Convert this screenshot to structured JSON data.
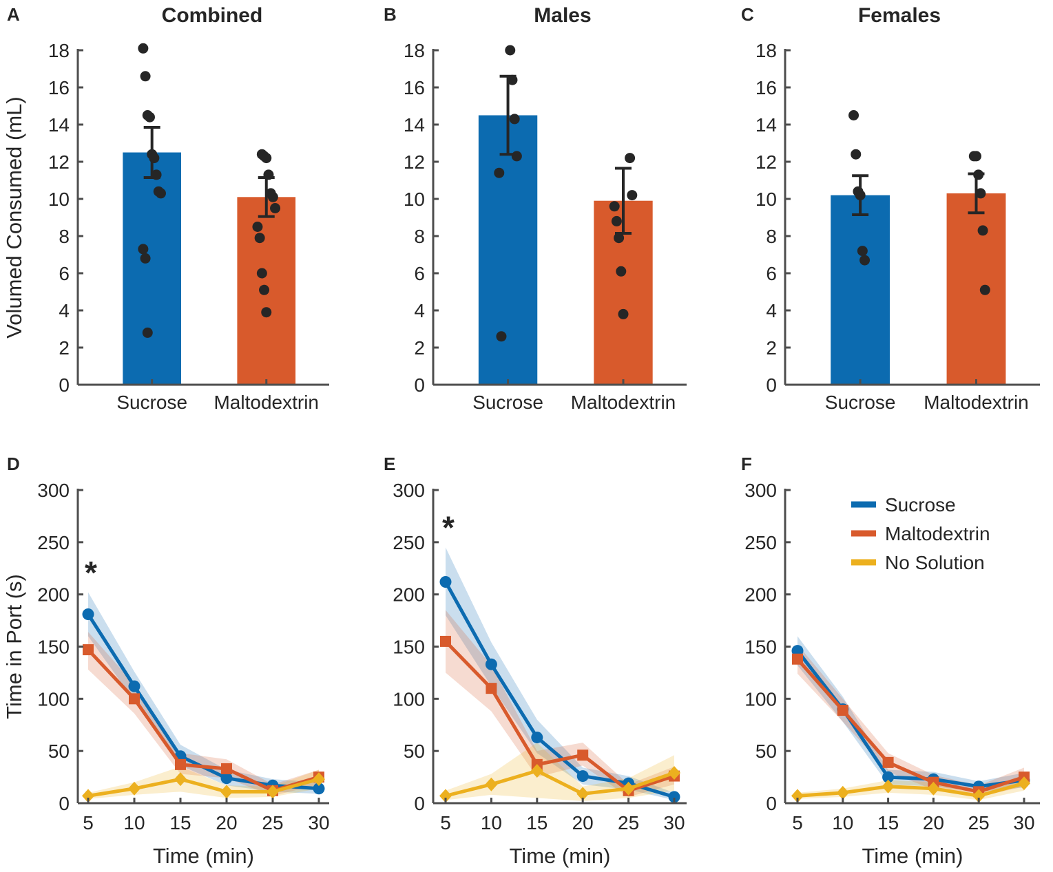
{
  "chart_data": [
    {
      "type": "bar",
      "panel_label": "A",
      "title": "Combined",
      "ylabel": "Volumed Consumed (mL)",
      "xlabel": "",
      "ylim": [
        0,
        18
      ],
      "yticks": [
        0,
        2,
        4,
        6,
        8,
        10,
        12,
        14,
        16,
        18
      ],
      "categories": [
        "Sucrose",
        "Maltodextrin"
      ],
      "values": [
        12.5,
        10.1
      ],
      "errors": [
        1.35,
        1.05
      ],
      "colors": [
        "#0c6bb0",
        "#d85a2c"
      ],
      "points": [
        [
          18.1,
          16.6,
          14.5,
          14.4,
          12.4,
          12.2,
          11.3,
          10.4,
          10.3,
          7.3,
          6.8,
          2.8
        ],
        [
          12.4,
          12.3,
          12.2,
          11.3,
          10.3,
          10.1,
          9.5,
          8.5,
          7.9,
          6.0,
          5.1,
          3.9
        ]
      ]
    },
    {
      "type": "bar",
      "panel_label": "B",
      "title": "Males",
      "ylabel": "",
      "xlabel": "",
      "ylim": [
        0,
        18
      ],
      "yticks": [
        0,
        2,
        4,
        6,
        8,
        10,
        12,
        14,
        16,
        18
      ],
      "categories": [
        "Sucrose",
        "Maltodextrin"
      ],
      "values": [
        14.5,
        9.9
      ],
      "errors": [
        2.1,
        1.75
      ],
      "colors": [
        "#0c6bb0",
        "#d85a2c"
      ],
      "points": [
        [
          18.0,
          16.4,
          14.3,
          12.3,
          11.4,
          2.6
        ],
        [
          12.2,
          10.2,
          9.6,
          8.8,
          7.9,
          6.1,
          3.8
        ]
      ]
    },
    {
      "type": "bar",
      "panel_label": "C",
      "title": "Females",
      "ylabel": "",
      "xlabel": "",
      "ylim": [
        0,
        18
      ],
      "yticks": [
        0,
        2,
        4,
        6,
        8,
        10,
        12,
        14,
        16,
        18
      ],
      "categories": [
        "Sucrose",
        "Maltodextrin"
      ],
      "values": [
        10.2,
        10.3
      ],
      "errors": [
        1.05,
        1.05
      ],
      "colors": [
        "#0c6bb0",
        "#d85a2c"
      ],
      "points": [
        [
          14.5,
          12.4,
          10.4,
          10.2,
          7.2,
          6.7
        ],
        [
          12.3,
          12.3,
          11.3,
          10.3,
          8.3,
          5.1
        ]
      ]
    },
    {
      "type": "line",
      "panel_label": "D",
      "title": "",
      "ylabel": "Time in Port (s)",
      "xlabel": "Time (min)",
      "x": [
        5,
        10,
        15,
        20,
        25,
        30
      ],
      "xlim": [
        5,
        30
      ],
      "ylim": [
        0,
        300
      ],
      "yticks": [
        0,
        50,
        100,
        150,
        200,
        250,
        300
      ],
      "annotation": "*",
      "annotation_x": 5,
      "annotation_y": 225,
      "series": [
        {
          "name": "Sucrose",
          "color": "#0c6bb0",
          "marker": "circle",
          "values": [
            181,
            112,
            45,
            24,
            17,
            14
          ],
          "lower": [
            160,
            98,
            36,
            17,
            11,
            9
          ],
          "upper": [
            202,
            126,
            56,
            32,
            23,
            20
          ]
        },
        {
          "name": "Maltodextrin",
          "color": "#d85a2c",
          "marker": "square",
          "values": [
            147,
            100,
            37,
            33,
            12,
            25
          ],
          "lower": [
            128,
            86,
            28,
            24,
            7,
            18
          ],
          "upper": [
            164,
            114,
            48,
            42,
            18,
            32
          ]
        },
        {
          "name": "No Solution",
          "color": "#ecb01f",
          "marker": "diamond",
          "values": [
            7,
            14,
            23,
            11,
            11,
            23
          ],
          "lower": [
            4,
            8,
            11,
            5,
            6,
            14
          ],
          "upper": [
            10,
            20,
            35,
            17,
            16,
            32
          ]
        }
      ]
    },
    {
      "type": "line",
      "panel_label": "E",
      "title": "",
      "ylabel": "",
      "xlabel": "Time (min)",
      "x": [
        5,
        10,
        15,
        20,
        25,
        30
      ],
      "xlim": [
        5,
        30
      ],
      "ylim": [
        0,
        300
      ],
      "yticks": [
        0,
        50,
        100,
        150,
        200,
        250,
        300
      ],
      "annotation": "*",
      "annotation_x": 5,
      "annotation_y": 268,
      "series": [
        {
          "name": "Sucrose",
          "color": "#0c6bb0",
          "marker": "circle",
          "values": [
            212,
            133,
            63,
            26,
            19,
            6
          ],
          "lower": [
            180,
            112,
            48,
            18,
            13,
            3
          ],
          "upper": [
            245,
            154,
            80,
            34,
            26,
            10
          ]
        },
        {
          "name": "Maltodextrin",
          "color": "#d85a2c",
          "marker": "square",
          "values": [
            155,
            110,
            37,
            46,
            12,
            26
          ],
          "lower": [
            125,
            88,
            25,
            36,
            6,
            18
          ],
          "upper": [
            185,
            132,
            50,
            58,
            18,
            35
          ]
        },
        {
          "name": "No Solution",
          "color": "#ecb01f",
          "marker": "diamond",
          "values": [
            7,
            18,
            31,
            9,
            14,
            29
          ],
          "lower": [
            3,
            8,
            5,
            2,
            5,
            12
          ],
          "upper": [
            12,
            28,
            58,
            16,
            24,
            46
          ]
        }
      ]
    },
    {
      "type": "line",
      "panel_label": "F",
      "title": "",
      "ylabel": "",
      "xlabel": "Time (min)",
      "x": [
        5,
        10,
        15,
        20,
        25,
        30
      ],
      "xlim": [
        5,
        30
      ],
      "ylim": [
        0,
        300
      ],
      "yticks": [
        0,
        50,
        100,
        150,
        200,
        250,
        300
      ],
      "legend": {
        "position": "top-right",
        "entries": [
          "Sucrose",
          "Maltodextrin",
          "No Solution"
        ]
      },
      "series": [
        {
          "name": "Sucrose",
          "color": "#0c6bb0",
          "marker": "circle",
          "values": [
            146,
            90,
            25,
            23,
            16,
            22
          ],
          "lower": [
            132,
            78,
            18,
            16,
            11,
            15
          ],
          "upper": [
            160,
            102,
            32,
            30,
            21,
            29
          ]
        },
        {
          "name": "Maltodextrin",
          "color": "#d85a2c",
          "marker": "square",
          "values": [
            138,
            89,
            39,
            20,
            11,
            25
          ],
          "lower": [
            124,
            78,
            30,
            13,
            6,
            16
          ],
          "upper": [
            152,
            100,
            48,
            27,
            17,
            34
          ]
        },
        {
          "name": "No Solution",
          "color": "#ecb01f",
          "marker": "diamond",
          "values": [
            7,
            10,
            16,
            14,
            7,
            19
          ],
          "lower": [
            4,
            6,
            10,
            8,
            3,
            12
          ],
          "upper": [
            10,
            14,
            22,
            20,
            11,
            26
          ]
        }
      ]
    }
  ]
}
